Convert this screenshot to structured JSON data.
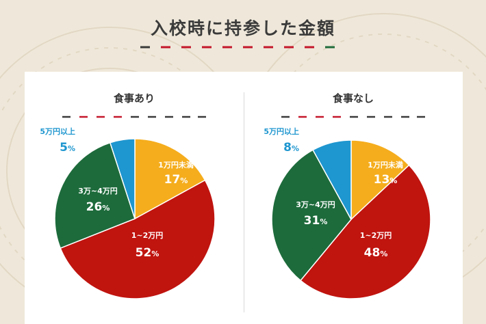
{
  "page": {
    "title": "入校時に持参した金額"
  },
  "colors": {
    "background": "#efe8da",
    "card": "#ffffff",
    "dash_red": "#c4162a",
    "dash_green": "#1f6b3a",
    "dash_dark": "#3a3a3a",
    "blue": "#1e96cf",
    "yellow": "#f5ad1d",
    "red": "#c0140f",
    "green": "#1d6b3b"
  },
  "chart_data": [
    {
      "type": "pie",
      "title": "食事あり",
      "slices": [
        {
          "label": "1万円未満",
          "value": 17,
          "value_label": "17",
          "color": "#f5ad1d"
        },
        {
          "label": "1~2万円",
          "value": 52,
          "value_label": "52",
          "color": "#c0140f"
        },
        {
          "label": "3万~4万円",
          "value": 26,
          "value_label": "26",
          "color": "#1d6b3b"
        },
        {
          "label": "5万円以上",
          "value": 5,
          "value_label": "5",
          "color": "#1e96cf"
        }
      ],
      "unit": "%"
    },
    {
      "type": "pie",
      "title": "食事なし",
      "slices": [
        {
          "label": "1万円未満",
          "value": 13,
          "value_label": "13",
          "color": "#f5ad1d"
        },
        {
          "label": "1~2万円",
          "value": 48,
          "value_label": "48",
          "color": "#c0140f"
        },
        {
          "label": "3万~4万円",
          "value": 31,
          "value_label": "31",
          "color": "#1d6b3b"
        },
        {
          "label": "5万円以上",
          "value": 8,
          "value_label": "8",
          "color": "#1e96cf"
        }
      ],
      "unit": "%"
    }
  ]
}
